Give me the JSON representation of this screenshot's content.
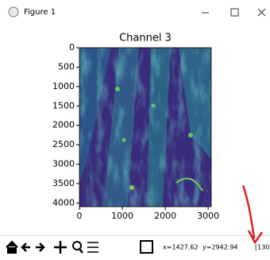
{
  "window": {
    "title": "Figure 1"
  },
  "chart_data": {
    "type": "image",
    "title": "Channel 3",
    "xlim": [
      -0.5,
      3071.5
    ],
    "ylim": [
      4095.5,
      -0.5
    ],
    "xticks": [
      0,
      1000,
      2000,
      3000
    ],
    "yticks": [
      0,
      500,
      1000,
      1500,
      2000,
      2500,
      3000,
      3500,
      4000
    ]
  },
  "toolbar": {
    "coords": [
      "x=1427.62",
      "y=2942.94",
      "[130"
    ]
  }
}
